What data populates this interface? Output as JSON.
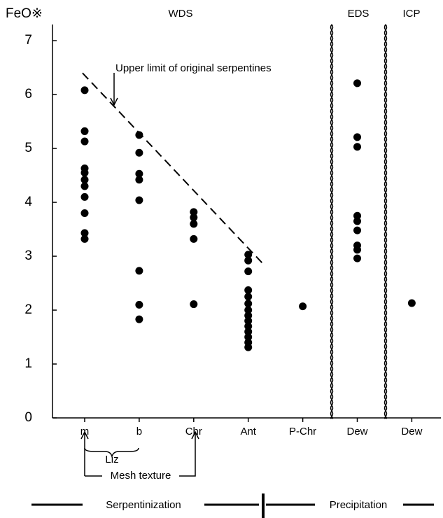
{
  "chart_data": {
    "type": "strip",
    "y_label": "FeO※",
    "categories": [
      "m",
      "b",
      "Chr",
      "Ant",
      "P-Chr",
      "Dew",
      "Dew"
    ],
    "values": [
      [
        6.08,
        5.32,
        5.13,
        4.63,
        4.55,
        4.42,
        4.3,
        4.1,
        3.8,
        3.43,
        3.32
      ],
      [
        5.25,
        4.92,
        4.53,
        4.42,
        4.04,
        2.73,
        2.1,
        1.83
      ],
      [
        3.82,
        3.72,
        3.6,
        3.32,
        2.11
      ],
      [
        3.03,
        2.92,
        2.72,
        2.37,
        2.25,
        2.12,
        2.0,
        1.9,
        1.8,
        1.7,
        1.6,
        1.5,
        1.4,
        1.31
      ],
      [
        2.07
      ],
      [
        6.21,
        5.21,
        5.03,
        3.75,
        3.65,
        3.48,
        3.2,
        3.12,
        2.96
      ],
      [
        2.13
      ]
    ],
    "color": "#000000",
    "ylim": [
      0,
      7.3
    ],
    "yticks": [
      0,
      1,
      2,
      3,
      4,
      5,
      6,
      7
    ],
    "sections": [
      "WDS",
      "EDS",
      "ICP"
    ],
    "upper_limit": {
      "label": "Upper limit of original serpentines",
      "x": [
        -0.04,
        3.28
      ],
      "y": [
        6.4,
        2.85
      ]
    },
    "annotations": {
      "liz": "Liz",
      "mesh": "Mesh texture"
    },
    "processes": [
      "Serpentinization",
      "Precipitation"
    ]
  }
}
